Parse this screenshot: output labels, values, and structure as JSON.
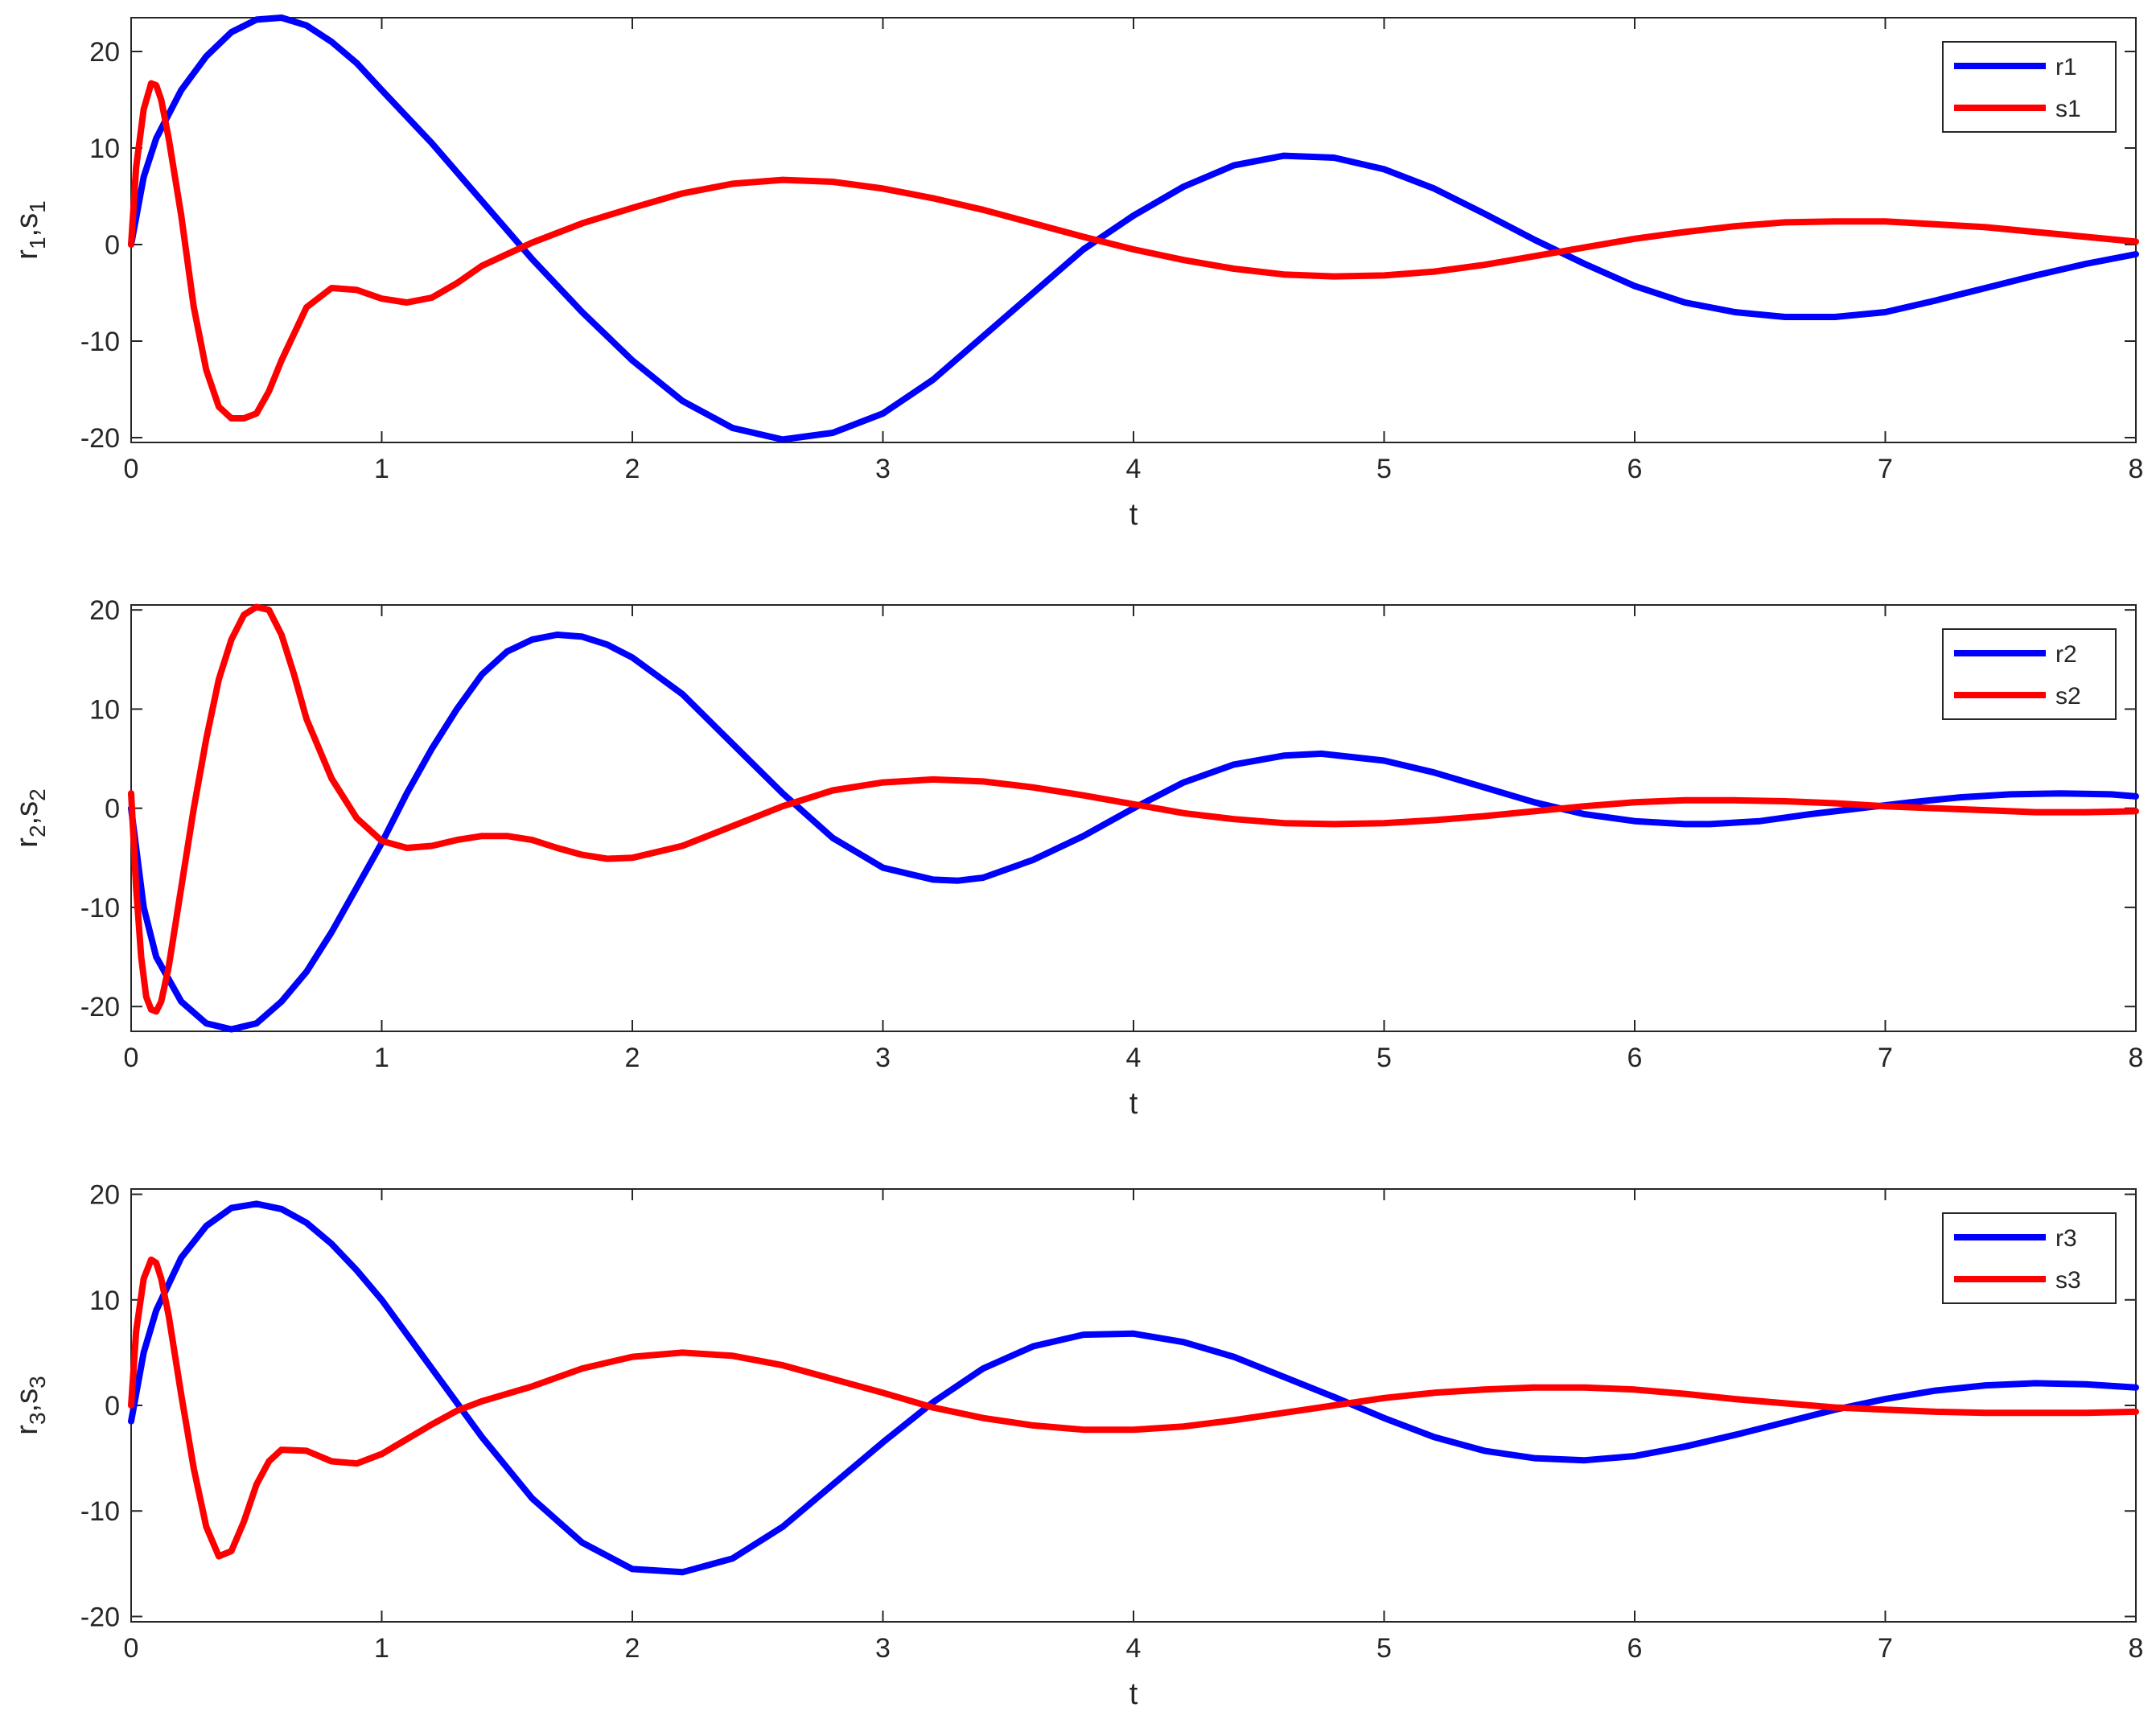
{
  "colors": {
    "r": "#0000ff",
    "s": "#ff0000",
    "axis": "#262626",
    "background": "#ffffff"
  },
  "chart_data": [
    {
      "type": "line",
      "xlabel": "t",
      "ylabel": {
        "a": "r",
        "a_sub": "1",
        "sep": ",",
        "b": "s",
        "b_sub": "1"
      },
      "xlim": [
        0,
        8
      ],
      "ylim": [
        -20.5,
        23.5
      ],
      "xticks": [
        "0",
        "1",
        "2",
        "3",
        "4",
        "5",
        "6",
        "7",
        "8"
      ],
      "yticks": [
        -20,
        -10,
        0,
        10,
        20
      ],
      "ytick_labels": [
        "-20",
        "-10",
        "0",
        "10",
        "20"
      ],
      "grid": false,
      "legend": "top-right",
      "series": [
        {
          "name": "r1",
          "color": "#0000ff",
          "x": [
            0,
            0.05,
            0.1,
            0.2,
            0.3,
            0.4,
            0.5,
            0.6,
            0.7,
            0.8,
            0.9,
            1.0,
            1.2,
            1.4,
            1.6,
            1.8,
            2.0,
            2.2,
            2.4,
            2.6,
            2.8,
            3.0,
            3.2,
            3.4,
            3.6,
            3.8,
            4.0,
            4.2,
            4.4,
            4.6,
            4.8,
            5.0,
            5.2,
            5.4,
            5.6,
            5.8,
            6.0,
            6.2,
            6.4,
            6.6,
            6.8,
            7.0,
            7.2,
            7.4,
            7.6,
            7.8,
            8.0
          ],
          "y": [
            0,
            7,
            11,
            16,
            19.5,
            22,
            23.3,
            23.5,
            22.7,
            21,
            18.8,
            16,
            10.5,
            4.5,
            -1.5,
            -7,
            -12,
            -16.2,
            -19,
            -20.2,
            -19.5,
            -17.5,
            -14,
            -9.5,
            -5,
            -0.5,
            3,
            6,
            8.2,
            9.2,
            9,
            7.8,
            5.8,
            3.2,
            0.5,
            -2,
            -4.3,
            -6,
            -7,
            -7.5,
            -7.5,
            -7,
            -5.8,
            -4.5,
            -3.2,
            -2,
            -1
          ]
        },
        {
          "name": "s1",
          "color": "#ff0000",
          "x": [
            0,
            0.02,
            0.05,
            0.08,
            0.1,
            0.12,
            0.15,
            0.2,
            0.25,
            0.3,
            0.35,
            0.4,
            0.45,
            0.5,
            0.55,
            0.6,
            0.7,
            0.8,
            0.9,
            1.0,
            1.1,
            1.2,
            1.3,
            1.4,
            1.6,
            1.8,
            2.0,
            2.2,
            2.4,
            2.6,
            2.8,
            3.0,
            3.2,
            3.4,
            3.6,
            3.8,
            4.0,
            4.2,
            4.4,
            4.6,
            4.8,
            5.0,
            5.2,
            5.4,
            5.6,
            5.8,
            6.0,
            6.2,
            6.4,
            6.6,
            6.8,
            7.0,
            7.2,
            7.4,
            7.6,
            7.8,
            8.0
          ],
          "y": [
            0,
            8,
            14,
            16.7,
            16.5,
            15,
            11,
            3,
            -6.5,
            -13,
            -16.8,
            -18,
            -18,
            -17.5,
            -15.2,
            -12,
            -6.5,
            -4.5,
            -4.7,
            -5.6,
            -6,
            -5.5,
            -4,
            -2.2,
            0.2,
            2.2,
            3.8,
            5.3,
            6.3,
            6.7,
            6.5,
            5.8,
            4.8,
            3.6,
            2.2,
            0.8,
            -0.5,
            -1.6,
            -2.5,
            -3.1,
            -3.3,
            -3.2,
            -2.8,
            -2.1,
            -1.2,
            -0.3,
            0.6,
            1.3,
            1.9,
            2.3,
            2.4,
            2.4,
            2.1,
            1.8,
            1.3,
            0.8,
            0.3
          ]
        }
      ]
    },
    {
      "type": "line",
      "xlabel": "t",
      "ylabel": {
        "a": "r",
        "a_sub": "2",
        "sep": ",",
        "b": "s",
        "b_sub": "2"
      },
      "xlim": [
        0,
        8
      ],
      "ylim": [
        -22.5,
        20.5
      ],
      "xticks": [
        "0",
        "1",
        "2",
        "3",
        "4",
        "5",
        "6",
        "7",
        "8"
      ],
      "yticks": [
        -20,
        -10,
        0,
        10,
        20
      ],
      "ytick_labels": [
        "-20",
        "-10",
        "0",
        "10",
        "20"
      ],
      "grid": false,
      "legend": "top-right",
      "series": [
        {
          "name": "r2",
          "color": "#0000ff",
          "x": [
            0,
            0.05,
            0.1,
            0.2,
            0.3,
            0.4,
            0.5,
            0.6,
            0.7,
            0.8,
            0.9,
            1.0,
            1.1,
            1.2,
            1.3,
            1.4,
            1.5,
            1.6,
            1.7,
            1.8,
            1.9,
            2.0,
            2.2,
            2.4,
            2.6,
            2.8,
            3.0,
            3.2,
            3.3,
            3.4,
            3.6,
            3.8,
            4.0,
            4.2,
            4.4,
            4.6,
            4.75,
            5.0,
            5.2,
            5.4,
            5.6,
            5.8,
            6.0,
            6.2,
            6.3,
            6.5,
            6.7,
            6.9,
            7.1,
            7.3,
            7.5,
            7.7,
            7.9,
            8.0
          ],
          "y": [
            0,
            -10,
            -15,
            -19.5,
            -21.7,
            -22.3,
            -21.7,
            -19.5,
            -16.5,
            -12.5,
            -8,
            -3.5,
            1.5,
            6,
            10,
            13.5,
            15.8,
            17,
            17.5,
            17.3,
            16.5,
            15.2,
            11.5,
            6.5,
            1.5,
            -3,
            -6,
            -7.2,
            -7.3,
            -7,
            -5.2,
            -2.8,
            0,
            2.6,
            4.4,
            5.3,
            5.5,
            4.8,
            3.6,
            2.1,
            0.6,
            -0.6,
            -1.3,
            -1.6,
            -1.6,
            -1.3,
            -0.6,
            0,
            0.6,
            1.1,
            1.4,
            1.5,
            1.4,
            1.2
          ]
        },
        {
          "name": "s2",
          "color": "#ff0000",
          "x": [
            0,
            0.02,
            0.04,
            0.06,
            0.08,
            0.1,
            0.12,
            0.15,
            0.2,
            0.25,
            0.3,
            0.35,
            0.4,
            0.45,
            0.5,
            0.55,
            0.6,
            0.65,
            0.7,
            0.8,
            0.9,
            1.0,
            1.1,
            1.2,
            1.3,
            1.4,
            1.5,
            1.6,
            1.7,
            1.8,
            1.9,
            2.0,
            2.2,
            2.4,
            2.6,
            2.8,
            3.0,
            3.2,
            3.4,
            3.6,
            3.8,
            4.0,
            4.2,
            4.4,
            4.6,
            4.8,
            5.0,
            5.2,
            5.4,
            5.6,
            5.8,
            6.0,
            6.2,
            6.4,
            6.6,
            6.8,
            7.0,
            7.2,
            7.4,
            7.6,
            7.8,
            8.0
          ],
          "y": [
            1.5,
            -8,
            -15,
            -19,
            -20.3,
            -20.5,
            -19.5,
            -16,
            -8,
            0,
            7,
            13,
            17,
            19.5,
            20.3,
            20,
            17.5,
            13.5,
            9,
            3,
            -1,
            -3.3,
            -4,
            -3.8,
            -3.2,
            -2.8,
            -2.8,
            -3.2,
            -4,
            -4.7,
            -5.1,
            -5,
            -3.8,
            -1.8,
            0.2,
            1.8,
            2.6,
            2.9,
            2.7,
            2.1,
            1.3,
            0.4,
            -0.5,
            -1.1,
            -1.5,
            -1.6,
            -1.5,
            -1.2,
            -0.8,
            -0.3,
            0.2,
            0.6,
            0.8,
            0.8,
            0.7,
            0.5,
            0.2,
            0,
            -0.2,
            -0.4,
            -0.4,
            -0.3
          ]
        }
      ]
    },
    {
      "type": "line",
      "xlabel": "t",
      "ylabel": {
        "a": "r",
        "a_sub": "3",
        "sep": ",",
        "b": "s",
        "b_sub": "3"
      },
      "xlim": [
        0,
        8
      ],
      "ylim": [
        -20.5,
        20.5
      ],
      "xticks": [
        "0",
        "1",
        "2",
        "3",
        "4",
        "5",
        "6",
        "7",
        "8"
      ],
      "yticks": [
        -20,
        -10,
        0,
        10,
        20
      ],
      "ytick_labels": [
        "-20",
        "-10",
        "0",
        "10",
        "20"
      ],
      "grid": false,
      "legend": "top-right",
      "series": [
        {
          "name": "r3",
          "color": "#0000ff",
          "x": [
            0,
            0.05,
            0.1,
            0.2,
            0.3,
            0.4,
            0.5,
            0.6,
            0.7,
            0.8,
            0.9,
            1.0,
            1.2,
            1.4,
            1.6,
            1.8,
            2.0,
            2.2,
            2.4,
            2.6,
            2.8,
            3.0,
            3.2,
            3.4,
            3.6,
            3.8,
            4.0,
            4.2,
            4.4,
            4.6,
            4.8,
            5.0,
            5.2,
            5.4,
            5.6,
            5.8,
            6.0,
            6.2,
            6.4,
            6.6,
            6.8,
            7.0,
            7.2,
            7.4,
            7.6,
            7.8,
            8.0
          ],
          "y": [
            -1.5,
            5,
            9,
            14,
            17,
            18.7,
            19.1,
            18.6,
            17.3,
            15.3,
            12.8,
            10,
            3.5,
            -3,
            -8.8,
            -13,
            -15.5,
            -15.8,
            -14.5,
            -11.5,
            -7.5,
            -3.5,
            0.3,
            3.5,
            5.6,
            6.7,
            6.8,
            6,
            4.6,
            2.7,
            0.8,
            -1.2,
            -3,
            -4.3,
            -5,
            -5.2,
            -4.8,
            -3.9,
            -2.8,
            -1.6,
            -0.4,
            0.6,
            1.4,
            1.9,
            2.1,
            2,
            1.7
          ]
        },
        {
          "name": "s3",
          "color": "#ff0000",
          "x": [
            0,
            0.02,
            0.05,
            0.08,
            0.1,
            0.12,
            0.15,
            0.2,
            0.25,
            0.3,
            0.35,
            0.4,
            0.45,
            0.5,
            0.55,
            0.6,
            0.7,
            0.8,
            0.9,
            1.0,
            1.1,
            1.2,
            1.3,
            1.4,
            1.6,
            1.8,
            2.0,
            2.2,
            2.4,
            2.6,
            2.8,
            3.0,
            3.2,
            3.4,
            3.6,
            3.8,
            4.0,
            4.2,
            4.4,
            4.6,
            4.8,
            5.0,
            5.2,
            5.4,
            5.6,
            5.8,
            6.0,
            6.2,
            6.4,
            6.6,
            6.8,
            7.0,
            7.2,
            7.4,
            7.6,
            7.8,
            8.0
          ],
          "y": [
            0,
            7,
            12,
            13.8,
            13.5,
            12,
            8.5,
            1,
            -6,
            -11.5,
            -14.3,
            -13.8,
            -11,
            -7.5,
            -5.3,
            -4.2,
            -4.3,
            -5.3,
            -5.5,
            -4.6,
            -3.2,
            -1.8,
            -0.5,
            0.4,
            1.8,
            3.5,
            4.6,
            5,
            4.7,
            3.8,
            2.5,
            1.2,
            -0.2,
            -1.2,
            -1.9,
            -2.3,
            -2.3,
            -2,
            -1.4,
            -0.7,
            0,
            0.7,
            1.2,
            1.5,
            1.7,
            1.7,
            1.5,
            1.1,
            0.6,
            0.2,
            -0.2,
            -0.4,
            -0.6,
            -0.7,
            -0.7,
            -0.7,
            -0.6
          ]
        }
      ]
    }
  ]
}
